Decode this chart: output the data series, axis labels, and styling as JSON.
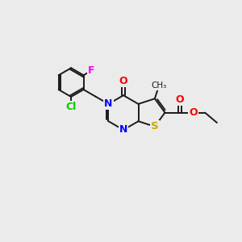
{
  "bg_color": "#ebebeb",
  "bond_color": "#1a1a1a",
  "N_color": "#0000ff",
  "S_color": "#ccaa00",
  "O_color": "#ff0000",
  "F_color": "#ff00ff",
  "Cl_color": "#00cc00",
  "fig_width": 3.0,
  "fig_height": 3.0,
  "dpi": 100,
  "xlim": [
    0,
    10
  ],
  "ylim": [
    0,
    10
  ]
}
